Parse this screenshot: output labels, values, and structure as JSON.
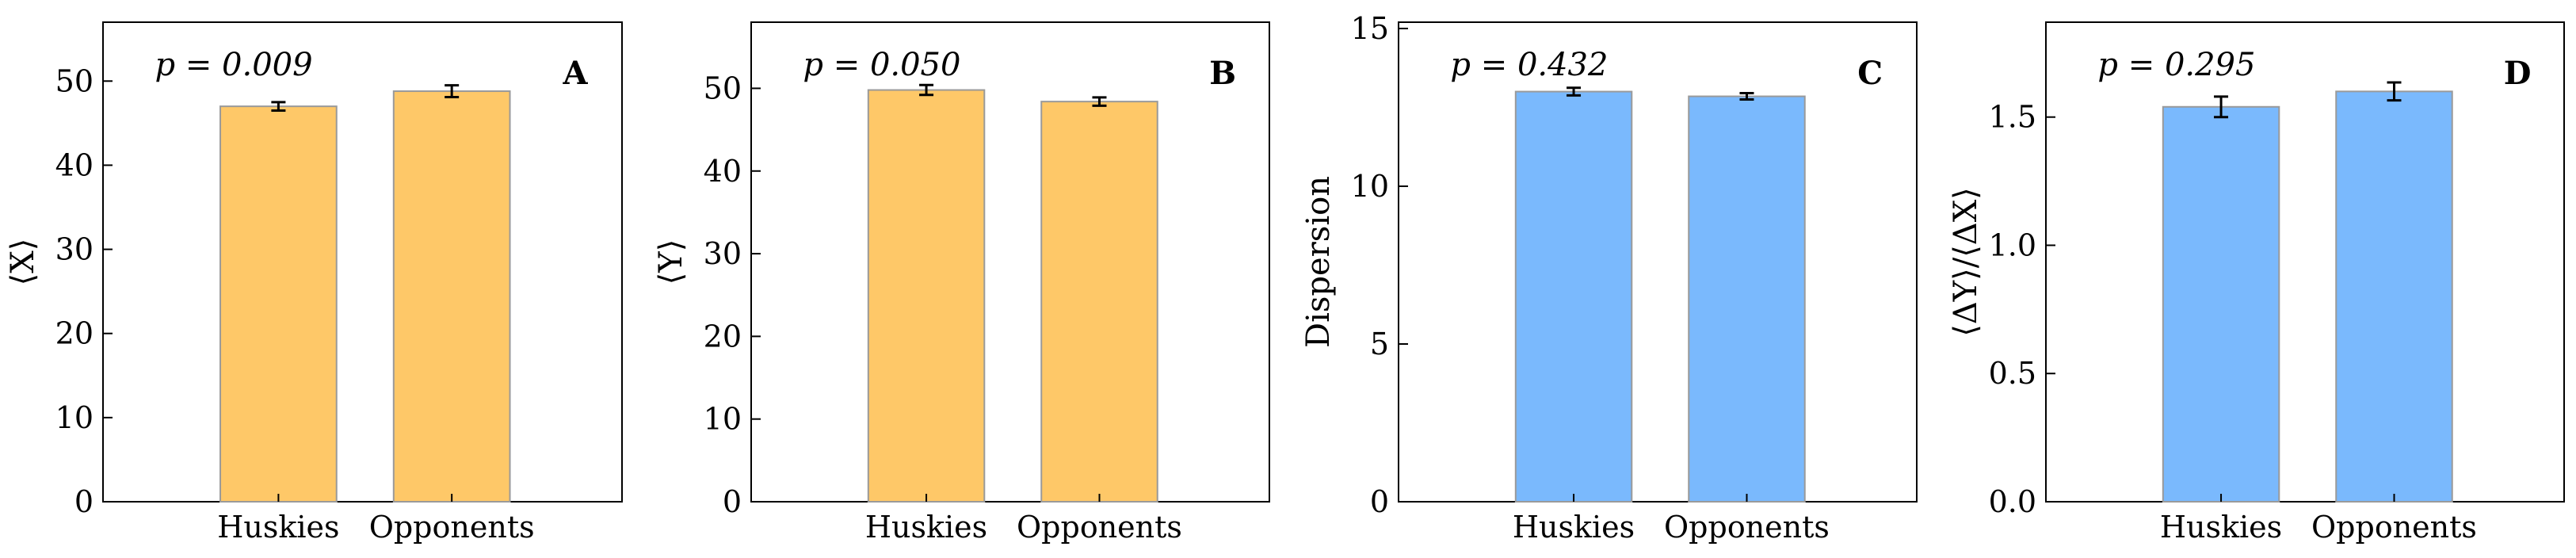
{
  "chart_data": [
    {
      "type": "bar",
      "panel_label": "A",
      "annotation": "p = 0.009",
      "ylabel": "⟨X⟩",
      "categories": [
        "Huskies",
        "Opponents"
      ],
      "values": [
        47.0,
        48.8
      ],
      "errors": [
        0.5,
        0.7
      ],
      "ylim": [
        0,
        57
      ],
      "yticks": [
        0,
        10,
        20,
        30,
        40,
        50
      ],
      "bar_color": "#fec868",
      "grid": false
    },
    {
      "type": "bar",
      "panel_label": "B",
      "annotation": "p = 0.050",
      "ylabel": "⟨Y⟩",
      "categories": [
        "Huskies",
        "Opponents"
      ],
      "values": [
        49.8,
        48.4
      ],
      "errors": [
        0.6,
        0.5
      ],
      "ylim": [
        0,
        58
      ],
      "yticks": [
        0,
        10,
        20,
        30,
        40,
        50
      ],
      "bar_color": "#fec868",
      "grid": false
    },
    {
      "type": "bar",
      "panel_label": "C",
      "annotation": "p = 0.432",
      "ylabel": "Dispersion",
      "categories": [
        "Huskies",
        "Opponents"
      ],
      "values": [
        13.0,
        12.85
      ],
      "errors": [
        0.12,
        0.1
      ],
      "ylim": [
        0,
        15.2
      ],
      "yticks": [
        0,
        5,
        10,
        15
      ],
      "bar_color": "#7ab9fd",
      "grid": false
    },
    {
      "type": "bar",
      "panel_label": "D",
      "annotation": "p = 0.295",
      "ylabel": "⟨ΔY⟩/⟨ΔX⟩",
      "categories": [
        "Huskies",
        "Opponents"
      ],
      "values": [
        1.54,
        1.6
      ],
      "errors": [
        0.04,
        0.035
      ],
      "ylim": [
        0,
        1.87
      ],
      "yticks": [
        0.0,
        0.5,
        1.0,
        1.5
      ],
      "ytick_labels": [
        "0.0",
        "0.5",
        "1.0",
        "1.5"
      ],
      "bar_color": "#7ab9fd",
      "grid": false
    }
  ]
}
